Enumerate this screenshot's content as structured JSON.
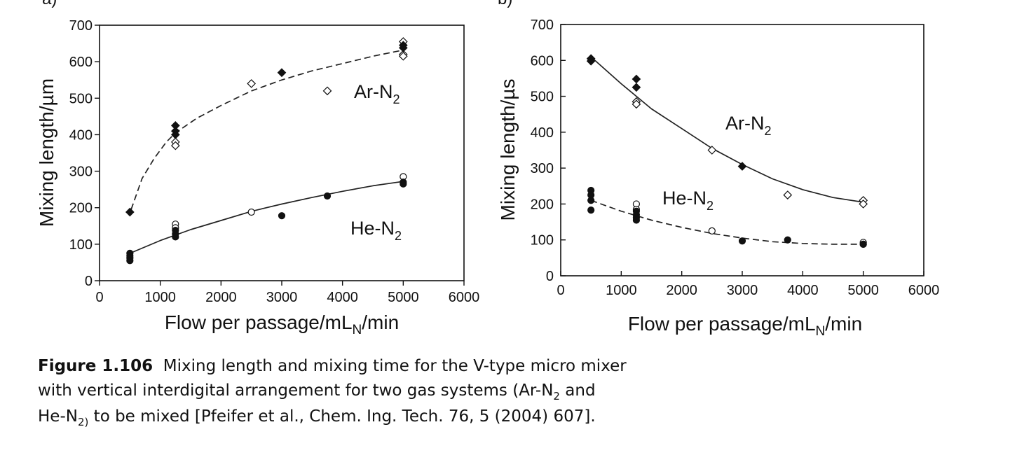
{
  "chart_data": [
    {
      "type": "scatter",
      "panel": "a)",
      "xlabel": "Flow per passage/mL",
      "xlabel_sub": "N",
      "xlabel_tail": "/min",
      "ylabel": "Mixing length/µm",
      "xlim": [
        0,
        6000
      ],
      "ylim": [
        0,
        700
      ],
      "xticks": [
        0,
        1000,
        2000,
        3000,
        4000,
        5000,
        6000
      ],
      "yticks": [
        0,
        100,
        200,
        300,
        400,
        500,
        600,
        700
      ],
      "grid": false,
      "series": [
        {
          "name": "Ar-N",
          "name_sub": "2",
          "fit_line": "dashed",
          "fit": {
            "x": [
              520,
              700,
              900,
              1100,
              1250,
              1600,
              2000,
              2500,
              3000,
              3500,
              4000,
              4500,
              5000
            ],
            "y": [
              195,
              280,
              335,
              380,
              405,
              445,
              480,
              520,
              550,
              575,
              595,
              615,
              632
            ]
          },
          "filled": {
            "x": [
              500,
              1250,
              1250,
              1250,
              3000,
              5000,
              5000
            ],
            "y": [
              188,
              425,
              410,
              400,
              570,
              645,
              638
            ]
          },
          "open": {
            "x": [
              1250,
              1250,
              2500,
              3750,
              5000,
              5000,
              5000
            ],
            "y": [
              380,
              370,
              540,
              520,
              655,
              620,
              615
            ]
          }
        },
        {
          "name": "He-N",
          "name_sub": "2",
          "fit_line": "solid",
          "fit": {
            "x": [
              500,
              1000,
              1500,
              2000,
              2500,
              3000,
              3500,
              4000,
              4500,
              5000
            ],
            "y": [
              75,
              110,
              140,
              165,
              190,
              210,
              228,
              245,
              260,
              272
            ]
          },
          "filled": {
            "x": [
              500,
              500,
              500,
              500,
              1250,
              1250,
              1250,
              3000,
              3750,
              5000,
              5000
            ],
            "y": [
              75,
              68,
              62,
              55,
              138,
              128,
              120,
              178,
              232,
              270,
              265
            ]
          },
          "open": {
            "x": [
              1250,
              1250,
              2500,
              5000
            ],
            "y": [
              155,
              145,
              188,
              285
            ]
          }
        }
      ]
    },
    {
      "type": "scatter",
      "panel": "b)",
      "xlabel": "Flow per passage/mL",
      "xlabel_sub": "N",
      "xlabel_tail": "/min",
      "ylabel": "Mixing length/µs",
      "xlim": [
        0,
        6000
      ],
      "ylim": [
        0,
        700
      ],
      "xticks": [
        0,
        1000,
        2000,
        3000,
        4000,
        5000,
        6000
      ],
      "yticks": [
        0,
        100,
        200,
        300,
        400,
        500,
        600,
        700
      ],
      "grid": false,
      "series": [
        {
          "name": "Ar-N",
          "name_sub": "2",
          "fit_line": "solid",
          "fit": {
            "x": [
              500,
              1000,
              1500,
              2000,
              2500,
              3000,
              3500,
              4000,
              4500,
              5000
            ],
            "y": [
              610,
              535,
              465,
              410,
              355,
              310,
              270,
              240,
              218,
              205
            ]
          },
          "filled": {
            "x": [
              500,
              500,
              1250,
              1250,
              3000
            ],
            "y": [
              605,
              598,
              548,
              525,
              305
            ]
          },
          "open": {
            "x": [
              1250,
              1250,
              2500,
              3750,
              5000,
              5000
            ],
            "y": [
              485,
              478,
              350,
              225,
              210,
              200
            ]
          }
        },
        {
          "name": "He-N",
          "name_sub": "2",
          "fit_line": "dashed",
          "fit": {
            "x": [
              500,
              1000,
              1500,
              2000,
              2500,
              3000,
              3500,
              4000,
              4500,
              5000
            ],
            "y": [
              210,
              180,
              155,
              135,
              118,
              105,
              95,
              90,
              88,
              88
            ]
          },
          "filled": {
            "x": [
              500,
              500,
              500,
              500,
              1250,
              1250,
              1250,
              1250,
              3000,
              3750,
              5000
            ],
            "y": [
              238,
              225,
              210,
              183,
              180,
              170,
              162,
              155,
              97,
              100,
              88
            ]
          },
          "open": {
            "x": [
              1250,
              1250,
              2500,
              5000,
              5000
            ],
            "y": [
              200,
              185,
              125,
              93,
              88
            ]
          }
        }
      ]
    }
  ],
  "caption": {
    "label": "Figure 1.106",
    "line1": "Mixing length and mixing time for the V-type micro mixer",
    "line2_a": "with vertical interdigital arrangement for two gas systems (Ar-N",
    "line2_sub": "2",
    "line2_b": " and",
    "line3_a": "He-N",
    "line3_sub": "2)",
    "line3_b": " to be mixed [Pfeifer et al., Chem. Ing. Tech. 76, 5 (2004) 607]."
  }
}
